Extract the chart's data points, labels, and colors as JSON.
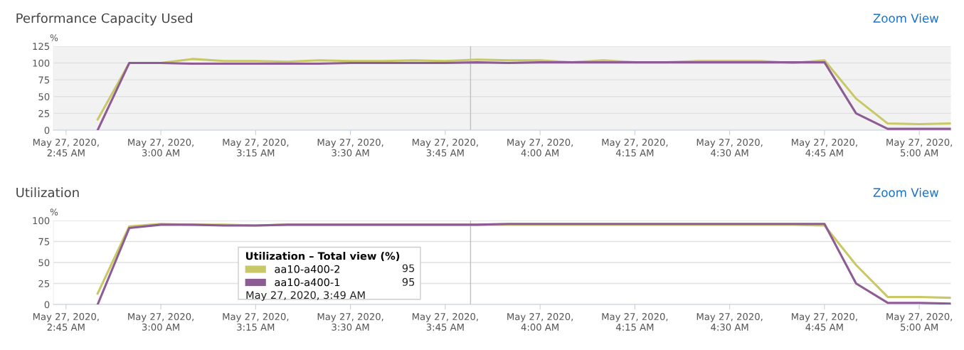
{
  "chart_data": [
    {
      "type": "line",
      "title": "Performance Capacity Used",
      "ylabel": "%",
      "annotations": [
        "Zoom View"
      ],
      "x": [
        "2020-05-27T02:50",
        "2020-05-27T02:55",
        "2020-05-27T03:00",
        "2020-05-27T03:05",
        "2020-05-27T03:10",
        "2020-05-27T03:15",
        "2020-05-27T03:20",
        "2020-05-27T03:25",
        "2020-05-27T03:30",
        "2020-05-27T03:35",
        "2020-05-27T03:40",
        "2020-05-27T03:45",
        "2020-05-27T03:50",
        "2020-05-27T03:55",
        "2020-05-27T04:00",
        "2020-05-27T04:05",
        "2020-05-27T04:10",
        "2020-05-27T04:15",
        "2020-05-27T04:20",
        "2020-05-27T04:25",
        "2020-05-27T04:30",
        "2020-05-27T04:35",
        "2020-05-27T04:40",
        "2020-05-27T04:45",
        "2020-05-27T04:50",
        "2020-05-27T04:55",
        "2020-05-27T05:00",
        "2020-05-27T05:05"
      ],
      "series": [
        {
          "color": "#c9c866",
          "values": [
            16,
            100,
            100,
            106,
            103,
            103,
            102,
            104,
            103,
            103,
            104,
            103,
            105,
            104,
            104,
            101,
            104,
            101,
            101,
            103,
            103,
            103,
            100,
            104,
            47,
            10,
            9,
            10
          ]
        },
        {
          "color": "#8e5c94",
          "values": [
            0,
            100,
            100,
            99,
            99,
            99,
            99,
            99,
            100,
            100,
            100,
            100,
            101,
            100,
            101,
            101,
            101,
            101,
            101,
            101,
            101,
            101,
            101,
            101,
            25,
            2,
            2,
            2
          ]
        }
      ],
      "xlim": [
        "2020-05-27T02:43",
        "2020-05-27T05:05"
      ],
      "ylim": [
        0,
        125
      ],
      "yticks": [
        0,
        25,
        50,
        75,
        100,
        125
      ],
      "xticks": [
        {
          "value": "2020-05-27T02:45",
          "label": "May 27, 2020,\n2:45 AM"
        },
        {
          "value": "2020-05-27T03:00",
          "label": "May 27, 2020,\n3:00 AM"
        },
        {
          "value": "2020-05-27T03:15",
          "label": "May 27, 2020,\n3:15 AM"
        },
        {
          "value": "2020-05-27T03:30",
          "label": "May 27, 2020,\n3:30 AM"
        },
        {
          "value": "2020-05-27T03:45",
          "label": "May 27, 2020,\n3:45 AM"
        },
        {
          "value": "2020-05-27T04:00",
          "label": "May 27, 2020,\n4:00 AM"
        },
        {
          "value": "2020-05-27T04:15",
          "label": "May 27, 2020,\n4:15 AM"
        },
        {
          "value": "2020-05-27T04:30",
          "label": "May 27, 2020,\n4:30 AM"
        },
        {
          "value": "2020-05-27T04:45",
          "label": "May 27, 2020,\n4:45 AM"
        },
        {
          "value": "2020-05-27T05:00",
          "label": "May 27, 2020,\n5:00 AM"
        }
      ],
      "grid": "y",
      "ref_lines": [
        {
          "axis": "x",
          "value": "2020-05-27T03:49",
          "color": "#c0c0c0"
        }
      ]
    },
    {
      "type": "line",
      "title": "Utilization",
      "ylabel": "%",
      "annotations": [
        "Zoom View",
        "95",
        "95",
        "May 27, 2020, 3:49 AM"
      ],
      "legend": "bottom",
      "legend_title": "Utilization – Total view (%)",
      "x": [
        "2020-05-27T02:50",
        "2020-05-27T02:55",
        "2020-05-27T03:00",
        "2020-05-27T03:05",
        "2020-05-27T03:10",
        "2020-05-27T03:15",
        "2020-05-27T03:20",
        "2020-05-27T03:25",
        "2020-05-27T03:30",
        "2020-05-27T03:35",
        "2020-05-27T03:40",
        "2020-05-27T03:45",
        "2020-05-27T03:50",
        "2020-05-27T03:55",
        "2020-05-27T04:00",
        "2020-05-27T04:05",
        "2020-05-27T04:10",
        "2020-05-27T04:15",
        "2020-05-27T04:20",
        "2020-05-27T04:25",
        "2020-05-27T04:30",
        "2020-05-27T04:35",
        "2020-05-27T04:40",
        "2020-05-27T04:45",
        "2020-05-27T04:50",
        "2020-05-27T04:55",
        "2020-05-27T05:00",
        "2020-05-27T05:05"
      ],
      "series": [
        {
          "name": "aa10-a400-2",
          "color": "#c9c866",
          "values": [
            13,
            93,
            96,
            95,
            95,
            94,
            95,
            95,
            95,
            95,
            95,
            95,
            95,
            95,
            95,
            95,
            95,
            95,
            95,
            95,
            95,
            95,
            95,
            94,
            47,
            9,
            9,
            8
          ]
        },
        {
          "name": "aa10-a400-1",
          "color": "#8e5c94",
          "values": [
            0,
            91,
            95,
            95,
            94,
            94,
            95,
            95,
            95,
            95,
            95,
            95,
            95,
            96,
            96,
            96,
            96,
            96,
            96,
            96,
            96,
            96,
            96,
            96,
            25,
            2,
            2,
            1
          ]
        }
      ],
      "xlim": [
        "2020-05-27T02:43",
        "2020-05-27T05:05"
      ],
      "ylim": [
        0,
        100
      ],
      "yticks": [
        0,
        25,
        50,
        75,
        100
      ],
      "xticks": [
        {
          "value": "2020-05-27T02:45",
          "label": "May 27, 2020,\n2:45 AM"
        },
        {
          "value": "2020-05-27T03:00",
          "label": "May 27, 2020,\n3:00 AM"
        },
        {
          "value": "2020-05-27T03:15",
          "label": "May 27, 2020,\n3:15 AM"
        },
        {
          "value": "2020-05-27T03:30",
          "label": "May 27, 2020,\n3:30 AM"
        },
        {
          "value": "2020-05-27T03:45",
          "label": "May 27, 2020,\n3:45 AM"
        },
        {
          "value": "2020-05-27T04:00",
          "label": "May 27, 2020,\n4:00 AM"
        },
        {
          "value": "2020-05-27T04:15",
          "label": "May 27, 2020,\n4:15 AM"
        },
        {
          "value": "2020-05-27T04:30",
          "label": "May 27, 2020,\n4:30 AM"
        },
        {
          "value": "2020-05-27T04:45",
          "label": "May 27, 2020,\n4:45 AM"
        },
        {
          "value": "2020-05-27T05:00",
          "label": "May 27, 2020,\n5:00 AM"
        }
      ],
      "grid": "y",
      "ref_lines": [
        {
          "axis": "x",
          "value": "2020-05-27T03:49",
          "color": "#c0c0c0"
        }
      ]
    }
  ]
}
